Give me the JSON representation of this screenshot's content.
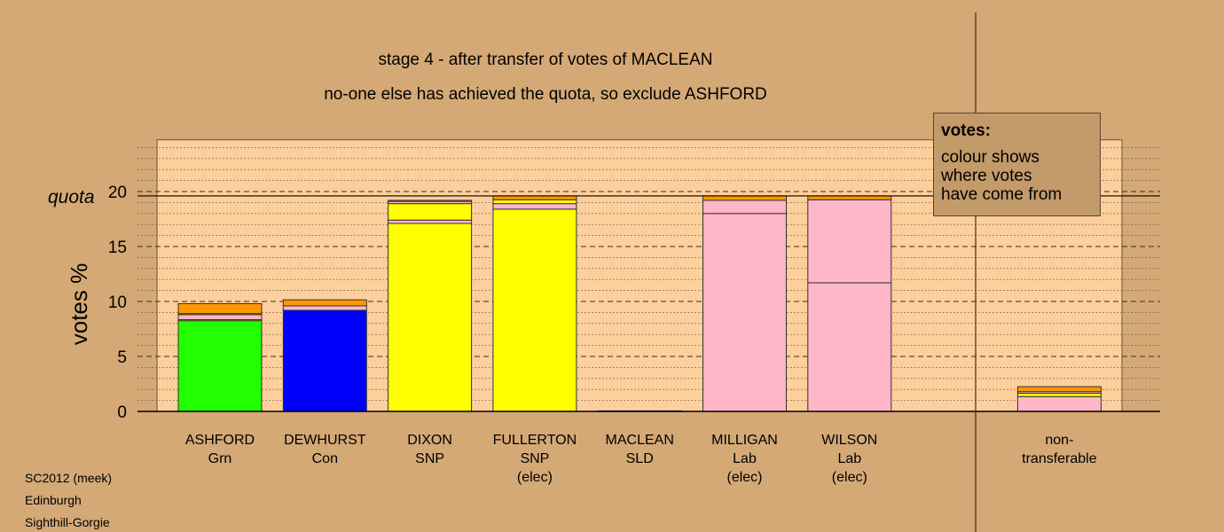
{
  "chart_data": {
    "type": "bar",
    "stacked": true,
    "title": "stage 4 - after transfer of votes of MACLEAN",
    "subtitle": "no-one else has achieved the quota, so exclude ASHFORD",
    "ylabel": "votes %",
    "ylim": [
      0,
      24.7
    ],
    "yticks": [
      0,
      5,
      10,
      15,
      20
    ],
    "quota": 19.6,
    "quota_label": "quota",
    "grid": true,
    "categories": [
      {
        "name": "ASHFORD",
        "party": "Grn",
        "status": ""
      },
      {
        "name": "DEWHURST",
        "party": "Con",
        "status": ""
      },
      {
        "name": "DIXON",
        "party": "SNP",
        "status": ""
      },
      {
        "name": "FULLERTON",
        "party": "SNP",
        "status": "(elec)"
      },
      {
        "name": "MACLEAN",
        "party": "SLD",
        "status": ""
      },
      {
        "name": "MILLIGAN",
        "party": "Lab",
        "status": "(elec)"
      },
      {
        "name": "WILSON",
        "party": "Lab",
        "status": "(elec)"
      },
      {
        "name": "",
        "party": "",
        "status": ""
      },
      {
        "name": "non-",
        "party": "transferable",
        "status": ""
      }
    ],
    "bars": [
      [
        {
          "value": 8.25,
          "color": "#22ff00"
        },
        {
          "value": 0.1,
          "color": "#ffff00"
        },
        {
          "value": 0.45,
          "color": "#ffb6c8"
        },
        {
          "value": 0.1,
          "color": "#ffff00"
        },
        {
          "value": 0.9,
          "color": "#ff9800"
        }
      ],
      [
        {
          "value": 9.2,
          "color": "#0000ff"
        },
        {
          "value": 0.4,
          "color": "#ffb6c8"
        },
        {
          "value": 0.55,
          "color": "#ff9800"
        }
      ],
      [
        {
          "value": 17.1,
          "color": "#ffff00"
        },
        {
          "value": 0.3,
          "color": "#ffb6c8"
        },
        {
          "value": 1.5,
          "color": "#ffff00"
        },
        {
          "value": 0.2,
          "color": "#ffb6c8"
        },
        {
          "value": 0.1,
          "color": "#ff9800"
        }
      ],
      [
        {
          "value": 18.4,
          "color": "#ffff00"
        },
        {
          "value": 0.5,
          "color": "#ffb6c8"
        },
        {
          "value": 0.35,
          "color": "#ffff00"
        },
        {
          "value": 0.35,
          "color": "#ff9800"
        }
      ],
      [
        {
          "value": 0.05,
          "color": "#ffff00"
        }
      ],
      [
        {
          "value": 18.0,
          "color": "#ffb6c8"
        },
        {
          "value": 1.2,
          "color": "#ffb6c8"
        },
        {
          "value": 0.4,
          "color": "#ff9800"
        }
      ],
      [
        {
          "value": 11.7,
          "color": "#ffb6c8"
        },
        {
          "value": 7.55,
          "color": "#ffb6c8"
        },
        {
          "value": 0.35,
          "color": "#ff9800"
        }
      ],
      [],
      [
        {
          "value": 1.35,
          "color": "#ffb6c8"
        },
        {
          "value": 0.3,
          "color": "#ffff00"
        },
        {
          "value": 0.15,
          "color": "#ffb6c8"
        },
        {
          "value": 0.45,
          "color": "#ff9800"
        }
      ]
    ]
  },
  "legend": {
    "title": "votes:",
    "lines": [
      "colour shows",
      "where votes",
      "have come from"
    ]
  },
  "footer": [
    "SC2012 (meek)",
    "Edinburgh",
    "Sighthill-Gorgie"
  ],
  "colors": {
    "background": "#d4a976",
    "plot_area": "#fdcf9c"
  }
}
